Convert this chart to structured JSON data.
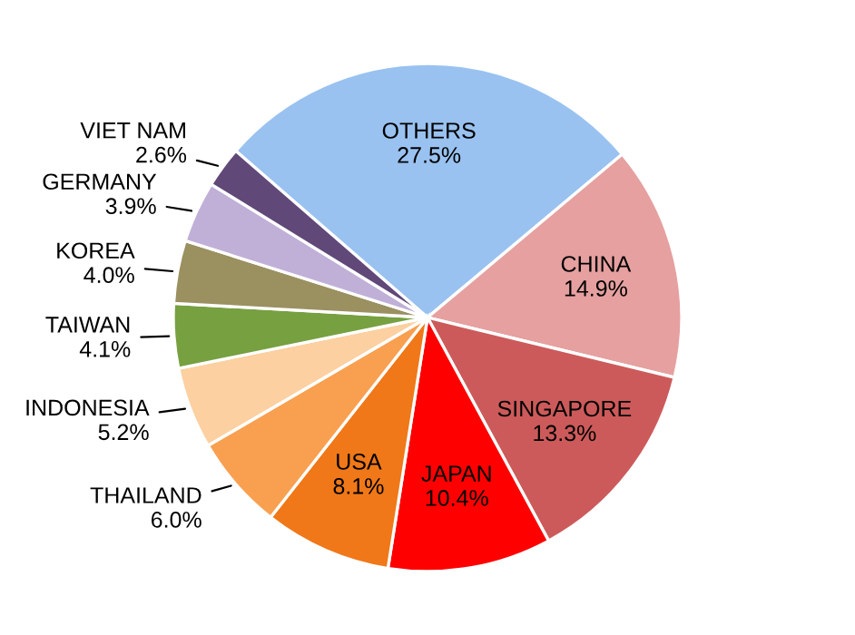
{
  "chart_data": {
    "type": "pie",
    "categories": [
      "OTHERS",
      "CHINA",
      "SINGAPORE",
      "JAPAN",
      "USA",
      "THAILAND",
      "INDONESIA",
      "TAIWAN",
      "KOREA",
      "GERMANY",
      "VIET NAM"
    ],
    "values": [
      27.5,
      14.9,
      13.3,
      10.4,
      8.1,
      6.0,
      5.2,
      4.1,
      4.0,
      3.9,
      2.6
    ],
    "value_labels": [
      "27.5%",
      "14.9%",
      "13.3%",
      "10.4%",
      "8.1%",
      "6.0%",
      "5.2%",
      "4.1%",
      "4.0%",
      "3.9%",
      "2.6%"
    ],
    "colors": [
      "#99c2f0",
      "#e6a0a0",
      "#cd5a5a",
      "#ff0000",
      "#f07818",
      "#f9a050",
      "#fcd0a0",
      "#77a040",
      "#9b9060",
      "#c0b0d8",
      "#604878"
    ],
    "legend": false
  }
}
